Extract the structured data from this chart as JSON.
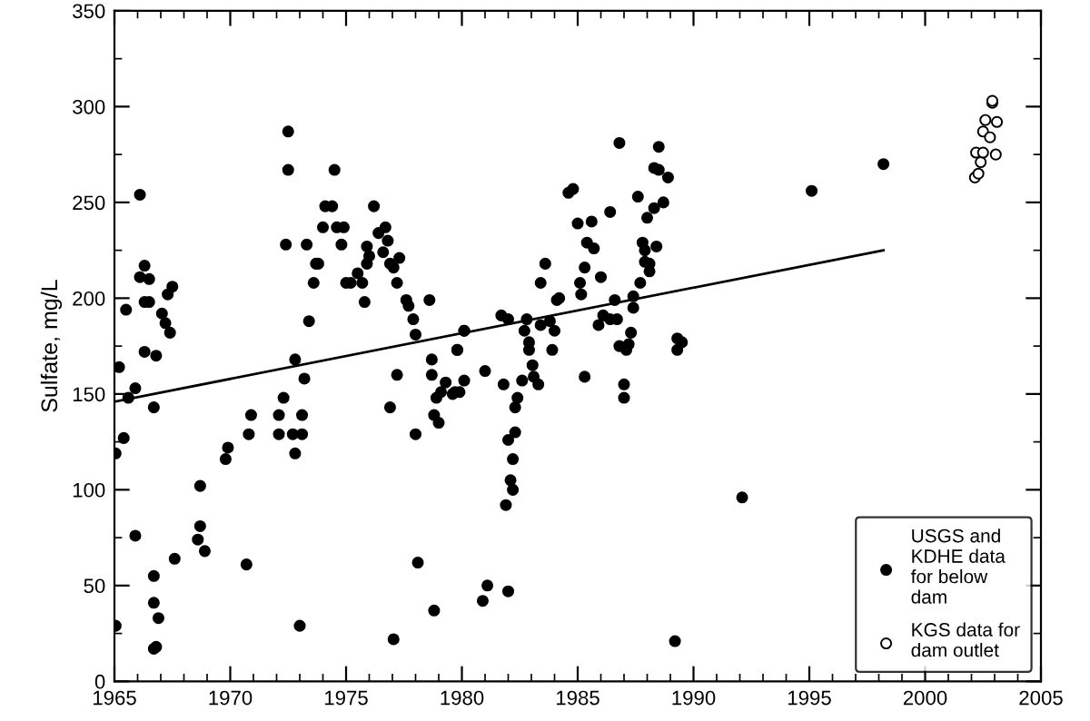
{
  "chart_data": {
    "type": "scatter",
    "ylabel": "Sulfate, mg/L",
    "xlim": [
      1965,
      2005
    ],
    "xticks": [
      1965,
      1970,
      1975,
      1980,
      1985,
      1990,
      1995,
      2000,
      2005
    ],
    "ylim": [
      0,
      350
    ],
    "yticks": [
      0,
      50,
      100,
      150,
      200,
      250,
      300,
      350
    ],
    "grid": false,
    "legend": "bottom right",
    "series": [
      {
        "name": "USGS and KDHE data for below dam",
        "color": "#000000",
        "marker": "circle",
        "x": [
          1965.05,
          1965.05,
          1965.2,
          1965.4,
          1965.5,
          1965.6,
          1965.9,
          1965.9,
          1966.1,
          1966.1,
          1966.3,
          1966.3,
          1966.5,
          1966.5,
          1966.3,
          1966.8,
          1966.7,
          1966.7,
          1966.7,
          1966.9,
          1966.8,
          1966.7,
          1967.05,
          1967.2,
          1967.4,
          1967.3,
          1967.5,
          1967.6,
          1968.6,
          1968.7,
          1968.7,
          1968.9,
          1969.8,
          1969.9,
          1970.7,
          1970.8,
          1970.9,
          1972.1,
          1972.1,
          1972.3,
          1972.4,
          1972.5,
          1972.5,
          1972.7,
          1972.8,
          1972.8,
          1973.0,
          1973.1,
          1973.1,
          1973.2,
          1973.3,
          1973.4,
          1973.6,
          1973.7,
          1973.8,
          1974.0,
          1974.1,
          1974.4,
          1974.5,
          1974.6,
          1974.8,
          1974.9,
          1975.0,
          1975.2,
          1975.5,
          1975.7,
          1975.8,
          1975.9,
          1975.9,
          1976.0,
          1976.2,
          1976.4,
          1976.6,
          1976.7,
          1976.8,
          1976.9,
          1977.05,
          1977.3,
          1977.2,
          1976.9,
          1977.05,
          1977.2,
          1977.6,
          1977.7,
          1977.9,
          1978.0,
          1978.0,
          1978.1,
          1978.6,
          1978.7,
          1978.7,
          1978.8,
          1978.8,
          1979.0,
          1978.9,
          1979.1,
          1979.3,
          1979.6,
          1979.8,
          1979.9,
          1980.1,
          1979.7,
          1979.8,
          1980.1,
          1980.1,
          1981.0,
          1980.9,
          1981.1,
          1981.7,
          1981.8,
          1981.9,
          1982.0,
          1982.0,
          1982.0,
          1982.1,
          1982.2,
          1982.2,
          1982.3,
          1982.3,
          1982.4,
          1982.6,
          1982.7,
          1982.8,
          1982.9,
          1982.9,
          1983.05,
          1983.1,
          1983.3,
          1983.4,
          1983.4,
          1983.6,
          1983.8,
          1983.9,
          1984.0,
          1984.1,
          1984.2,
          1984.6,
          1984.8,
          1985.0,
          1985.1,
          1985.15,
          1985.3,
          1985.3,
          1985.4,
          1985.6,
          1985.7,
          1985.9,
          1986.0,
          1986.1,
          1986.4,
          1986.4,
          1986.6,
          1986.7,
          1986.8,
          1986.8,
          1987.0,
          1987.0,
          1987.1,
          1987.2,
          1987.3,
          1987.4,
          1987.4,
          1987.6,
          1987.7,
          1987.8,
          1987.9,
          1987.9,
          1988.1,
          1988.1,
          1988.0,
          1988.3,
          1988.4,
          1988.3,
          1988.5,
          1988.5,
          1988.7,
          1988.9,
          1989.2,
          1989.3,
          1989.3,
          1989.5,
          1992.1,
          1995.1,
          1998.2
        ],
        "values": [
          119,
          29,
          164,
          127,
          194,
          148,
          76,
          153,
          254,
          211,
          217,
          198,
          210,
          198,
          172,
          170,
          143,
          55,
          41,
          33,
          18,
          17,
          192,
          187,
          182,
          202,
          206,
          64,
          74,
          81,
          102,
          68,
          116,
          122,
          61,
          129,
          139,
          129,
          139,
          148,
          228,
          267,
          287,
          129,
          119,
          168,
          29,
          129,
          139,
          158,
          228,
          188,
          208,
          218,
          218,
          237,
          248,
          248,
          267,
          237,
          228,
          237,
          208,
          208,
          213,
          208,
          198,
          227,
          218,
          222,
          248,
          234,
          224,
          237,
          230,
          218,
          216,
          221,
          208,
          143,
          22,
          160,
          199,
          196,
          189,
          181,
          129,
          62,
          199,
          168,
          160,
          139,
          37,
          135,
          148,
          151,
          156,
          150,
          173,
          151,
          183,
          151,
          173,
          157,
          183,
          162,
          42,
          50,
          191,
          155,
          92,
          47,
          126,
          189,
          105,
          100,
          116,
          130,
          143,
          148,
          157,
          183,
          189,
          177,
          173,
          165,
          159,
          155,
          186,
          208,
          218,
          188,
          173,
          183,
          199,
          200,
          255,
          257,
          239,
          208,
          202,
          159,
          216,
          229,
          240,
          226,
          186,
          211,
          191,
          245,
          189,
          199,
          189,
          175,
          281,
          155,
          148,
          173,
          176,
          182,
          201,
          195,
          253,
          208,
          229,
          225,
          219,
          218,
          214,
          242,
          247,
          227,
          268,
          279,
          267,
          250,
          263,
          21,
          179,
          173,
          177,
          96,
          256,
          270
        ]
      },
      {
        "name": "KGS data for dam outlet",
        "color": "#ffffff",
        "marker": "circle",
        "x": [
          2002.15,
          2002.3,
          2002.4,
          2002.2,
          2002.5,
          2002.5,
          2002.6,
          2002.8,
          2002.9,
          2002.9,
          2003.1,
          2003.05
        ],
        "values": [
          263,
          265,
          271,
          276,
          276,
          287,
          293,
          284,
          302,
          303,
          292,
          275
        ]
      },
      {
        "type": "line",
        "color": "#000000",
        "marker": "none",
        "x": [
          1965,
          1998.2
        ],
        "values": [
          146,
          225
        ]
      }
    ]
  }
}
